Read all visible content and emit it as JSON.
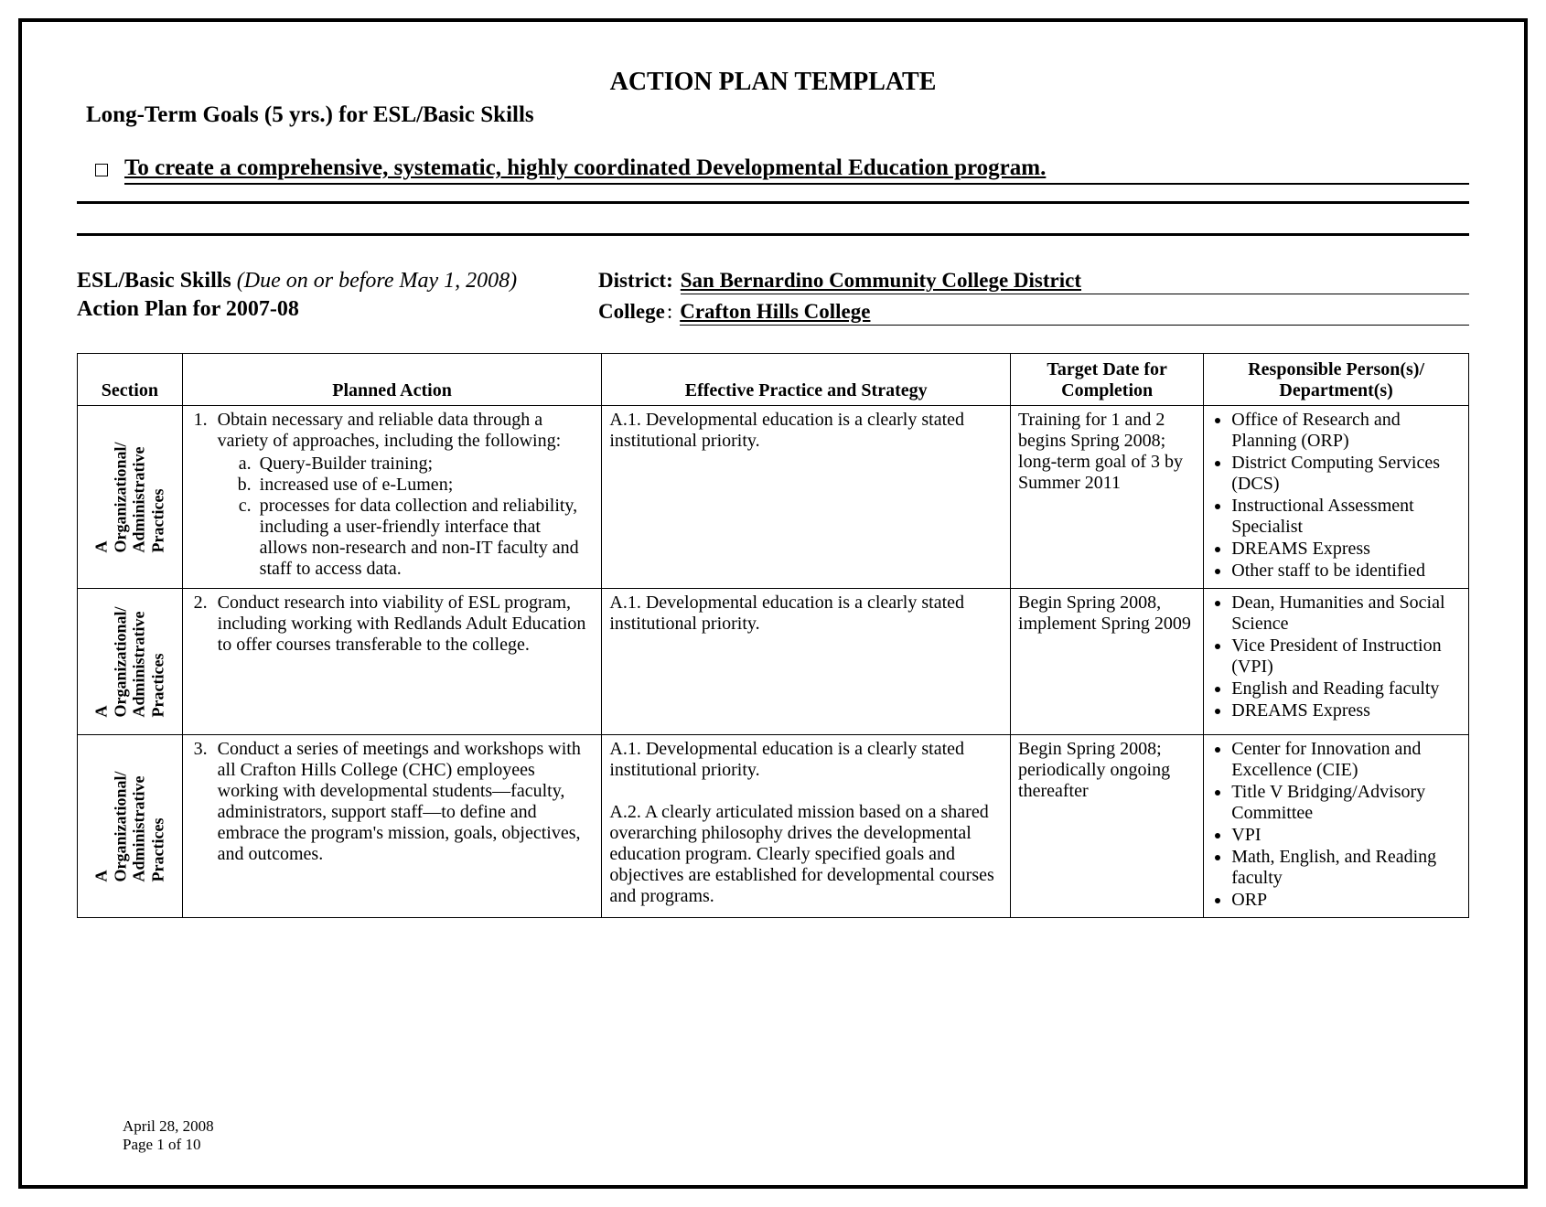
{
  "title": "ACTION PLAN TEMPLATE",
  "subtitle": "Long-Term Goals (5 yrs.) for ESL/Basic Skills",
  "goal": "To create a comprehensive, systematic, highly coordinated Developmental Education program.",
  "meta": {
    "program_label": "ESL/Basic Skills",
    "due_label": "(Due on or before May 1, 2008)",
    "plan_label": "Action Plan for 2007-08",
    "district_label": "District:",
    "district_value": "San Bernardino Community College District",
    "college_label": "College",
    "college_value": "Crafton Hills College"
  },
  "table": {
    "headers": {
      "section": "Section",
      "planned": "Planned Action",
      "practice": "Effective Practice and Strategy",
      "target": "Target Date for Completion",
      "responsible": "Responsible Person(s)/ Department(s)"
    },
    "section_label_line1": "A",
    "section_label_line2": "Organizational/",
    "section_label_line3": "Administrative",
    "section_label_line4": "Practices",
    "rows": [
      {
        "num": "1.",
        "planned_intro": "Obtain necessary and reliable data through a variety of approaches, including the following:",
        "planned_subs": [
          "Query-Builder training;",
          "increased use of e-Lumen;",
          "processes for data collection and reliability, including a user-friendly interface that allows non-research and non-IT faculty and staff to access data."
        ],
        "practice": "A.1. Developmental education is a clearly stated institutional priority.",
        "target": "Training for 1 and 2 begins Spring 2008; long-term goal of 3 by  Summer 2011",
        "responsible": [
          "Office of Research and Planning (ORP)",
          "District Computing Services (DCS)",
          "Instructional Assessment Specialist",
          "DREAMS Express",
          "Other staff to be identified"
        ]
      },
      {
        "num": "2.",
        "planned_intro": "Conduct research into viability of ESL program, including working with Redlands Adult Education to offer courses transferable to the college.",
        "planned_subs": [],
        "practice": "A.1. Developmental education is a clearly stated institutional priority.",
        "target": "Begin Spring 2008, implement Spring 2009",
        "responsible": [
          "Dean, Humanities and Social Science",
          "Vice President of Instruction (VPI)",
          "English and Reading faculty",
          "DREAMS Express"
        ]
      },
      {
        "num": "3.",
        "planned_intro": "Conduct a series of meetings and workshops with all Crafton Hills College (CHC) employees working with developmental students—faculty, administrators, support staff—to define and embrace the program's mission, goals, objectives, and outcomes.",
        "planned_subs": [],
        "practice": "A.1. Developmental education is a clearly stated institutional priority.\n\nA.2. A clearly articulated mission based on a shared overarching philosophy drives the developmental education program.  Clearly specified goals and objectives are established for developmental courses and programs.",
        "target": "Begin Spring 2008; periodically ongoing thereafter",
        "responsible": [
          "Center for Innovation and Excellence (CIE)",
          "Title V Bridging/Advisory Committee",
          "VPI",
          "Math, English, and Reading faculty",
          "ORP"
        ]
      }
    ]
  },
  "footer": {
    "date": "April 28, 2008",
    "page": "Page 1 of 10"
  }
}
